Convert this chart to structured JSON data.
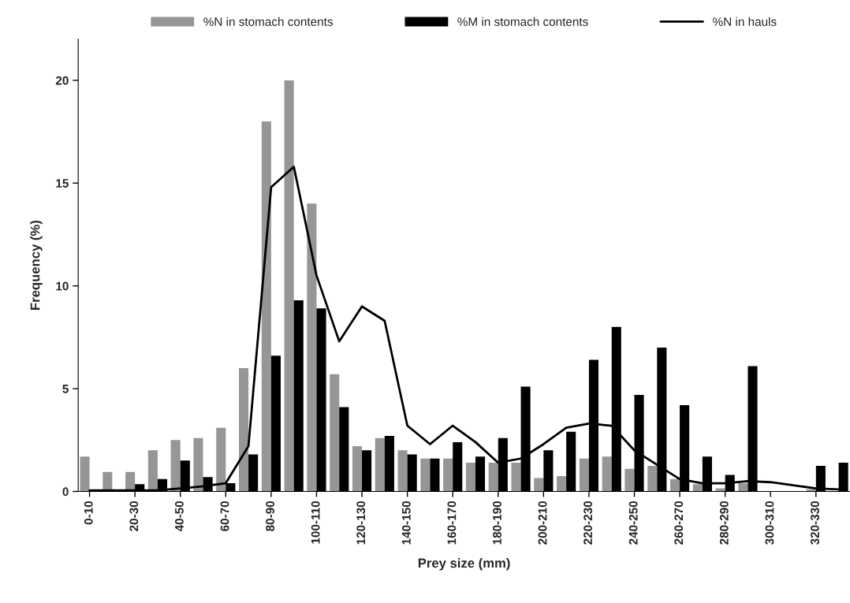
{
  "chart_data": {
    "type": "bar",
    "xlabel": "Prey size (mm)",
    "ylabel": "Frequency (%)",
    "categories": [
      "0-10",
      null,
      "20-30",
      null,
      "40-50",
      null,
      "60-70",
      null,
      "80-90",
      null,
      "100-110",
      null,
      "120-130",
      null,
      "140-150",
      null,
      "160-170",
      null,
      "180-190",
      null,
      "200-210",
      null,
      "220-230",
      null,
      "240-250",
      null,
      "260-270",
      null,
      "280-290",
      null,
      "300-310",
      null,
      "320-330",
      null
    ],
    "series": [
      {
        "name": "%N in stomach contents",
        "color": "#969696",
        "values": [
          1.7,
          0.95,
          0.95,
          2.0,
          2.5,
          2.6,
          3.1,
          6.0,
          18,
          20,
          14,
          5.7,
          2.2,
          2.6,
          2.0,
          1.6,
          1.6,
          1.4,
          1.4,
          1.4,
          0.65,
          0.75,
          1.6,
          1.7,
          1.1,
          1.25,
          0.6,
          0.35,
          0.15,
          0.4,
          0,
          0,
          0.1,
          0
        ]
      },
      {
        "name": "%M in stomach contents",
        "color": "#000000",
        "values": [
          0,
          0,
          0.35,
          0.6,
          1.5,
          0.7,
          0.4,
          1.8,
          6.6,
          9.3,
          8.9,
          4.1,
          2.0,
          2.7,
          1.8,
          1.6,
          2.4,
          1.7,
          2.6,
          5.1,
          2.0,
          2.9,
          6.4,
          8.0,
          4.7,
          7.0,
          4.2,
          1.7,
          0.8,
          6.1,
          0,
          0,
          1.25,
          1.4
        ]
      },
      {
        "name": "%N in hauls",
        "type": "line",
        "color": "#000000",
        "values": [
          0.05,
          0.05,
          0.05,
          0.05,
          0.15,
          0.25,
          0.4,
          2.2,
          14.8,
          15.8,
          10.5,
          7.3,
          9.0,
          8.3,
          3.2,
          2.3,
          3.2,
          2.4,
          1.4,
          1.6,
          2.3,
          3.1,
          3.3,
          3.2,
          2.0,
          1.3,
          0.6,
          0.4,
          0.4,
          0.5,
          0.45,
          0.3,
          0.15,
          0.1
        ]
      }
    ],
    "ylim": [
      0,
      22
    ],
    "yticks": [
      0,
      5,
      10,
      15,
      20
    ],
    "grid": false,
    "legend": "top",
    "marker": "none",
    "line_style": "solid"
  }
}
